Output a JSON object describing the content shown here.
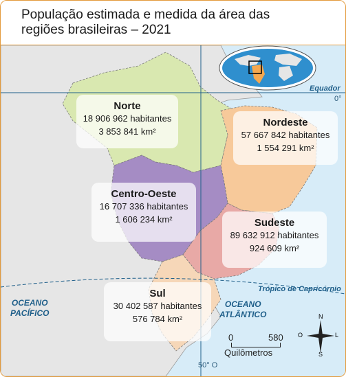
{
  "title": {
    "line1": "População estimada e medida da área das",
    "line2": "regiões brasileiras – 2021"
  },
  "regions": [
    {
      "name": "Norte",
      "population": "18 906 962 habitantes",
      "area": "3 853 841 km²",
      "color": "#d9e8b0"
    },
    {
      "name": "Nordeste",
      "population": "57 667 842 habitantes",
      "area": "1 554 291 km²",
      "color": "#f7c99a"
    },
    {
      "name": "Centro-Oeste",
      "population": "16 707 336 habitantes",
      "area": "1 606 234 km²",
      "color": "#a58cc4"
    },
    {
      "name": "Sudeste",
      "population": "89 632 912 habitantes",
      "area": "924 609 km²",
      "color": "#e8a9a6"
    },
    {
      "name": "Sul",
      "population": "30 402 587 habitantes",
      "area": "576 784 km²",
      "color": "#f6d7b8"
    }
  ],
  "labels": {
    "equator": "Equador",
    "equator_deg": "0°",
    "tropic": "Trópico de Capricórnio",
    "meridian": "50° O",
    "pacific": [
      "OCEANO",
      "PACÍFICO"
    ],
    "atlantic": [
      "OCEANO",
      "ATLÂNTICO"
    ]
  },
  "scale": {
    "start": "0",
    "end": "580",
    "unit": "Quilômetros"
  },
  "compass": {
    "n": "N",
    "s": "S",
    "l": "L",
    "o": "O"
  },
  "colors": {
    "ocean": "#d7ecf8",
    "land": "#e6e6e6",
    "border": "#e39a3b",
    "line": "#1f5f8a"
  }
}
